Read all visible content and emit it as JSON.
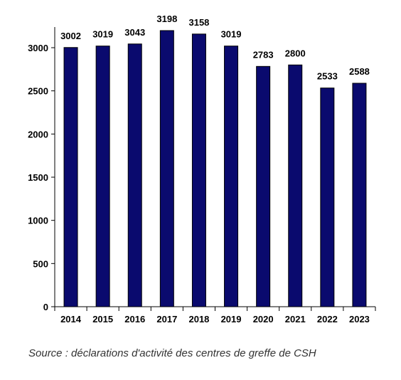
{
  "chart_data": {
    "type": "bar",
    "categories": [
      "2014",
      "2015",
      "2016",
      "2017",
      "2018",
      "2019",
      "2020",
      "2021",
      "2022",
      "2023"
    ],
    "values": [
      3002,
      3019,
      3043,
      3198,
      3158,
      3019,
      2783,
      2800,
      2533,
      2588
    ],
    "data_labels": [
      "3002",
      "3019",
      "3043",
      "3198",
      "3158",
      "3019",
      "2783",
      "2800",
      "2533",
      "2588"
    ],
    "y_ticks": [
      0,
      500,
      1000,
      1500,
      2000,
      2500,
      3000
    ],
    "ylim": [
      0,
      3000
    ],
    "grid": false,
    "legend": "none",
    "bar_color": "#0a0a6e"
  },
  "source_note": "Source : déclarations d'activité des centres de greffe de CSH"
}
